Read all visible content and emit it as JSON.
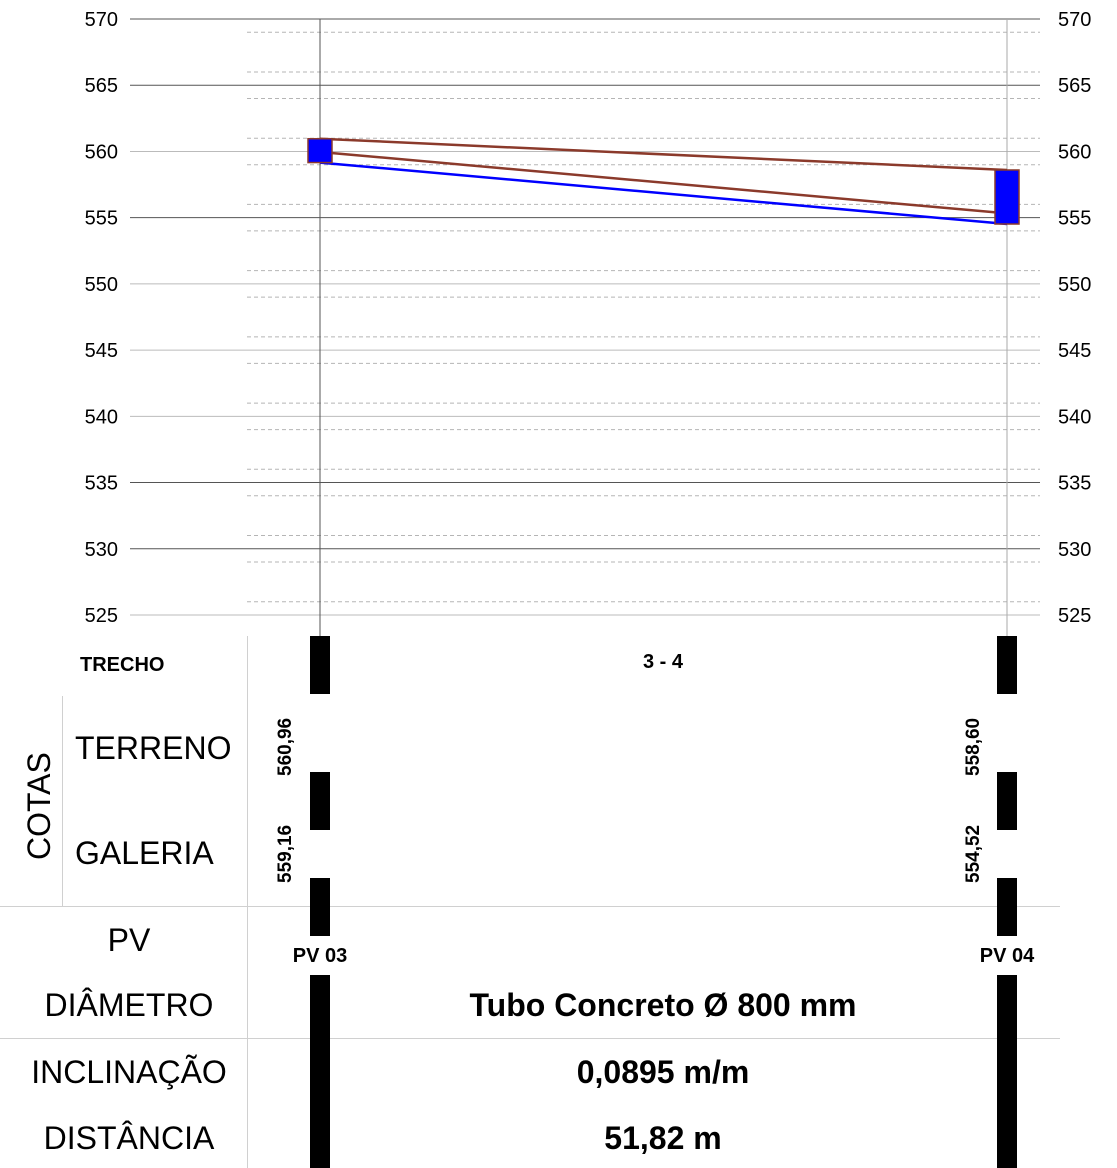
{
  "chart_data": {
    "type": "line",
    "y_ticks": [
      570,
      565,
      560,
      555,
      550,
      545,
      540,
      535,
      530,
      525
    ],
    "ylim": [
      525,
      570
    ],
    "stations": [
      {
        "name": "PV 03",
        "terreno": 560.96,
        "galeria": 559.16
      },
      {
        "name": "PV 04",
        "terreno": 558.6,
        "galeria": 554.52
      }
    ],
    "series": [
      {
        "values": [
          560.96,
          558.6
        ],
        "color": "#8b3a2b"
      },
      {
        "values": [
          559.16,
          554.52
        ],
        "color": "#0000ff"
      }
    ],
    "grid": true
  },
  "table": {
    "trecho_label": "TRECHO",
    "trecho_value": "3 - 4",
    "cotas_label": "COTAS",
    "terreno_label": "TERRENO",
    "galeria_label": "GALERIA",
    "terreno_start": "560,96",
    "terreno_end": "558,60",
    "galeria_start": "559,16",
    "galeria_end": "554,52",
    "pv_label": "PV",
    "pv_start": "PV 03",
    "pv_end": "PV 04",
    "diametro_label": "DIÂMETRO",
    "diametro_value": "Tubo Concreto Ø 800 mm",
    "inclinacao_label": "INCLINAÇÃO",
    "inclinacao_value": "0,0895 m/m",
    "distancia_label": "DISTÂNCIA",
    "distancia_value": "51,82 m"
  },
  "colors": {
    "terrain": "#8b3a2b",
    "invert": "#0000ff",
    "manhole_fill": "#0000ff",
    "manhole_stroke": "#8b3a2b"
  }
}
